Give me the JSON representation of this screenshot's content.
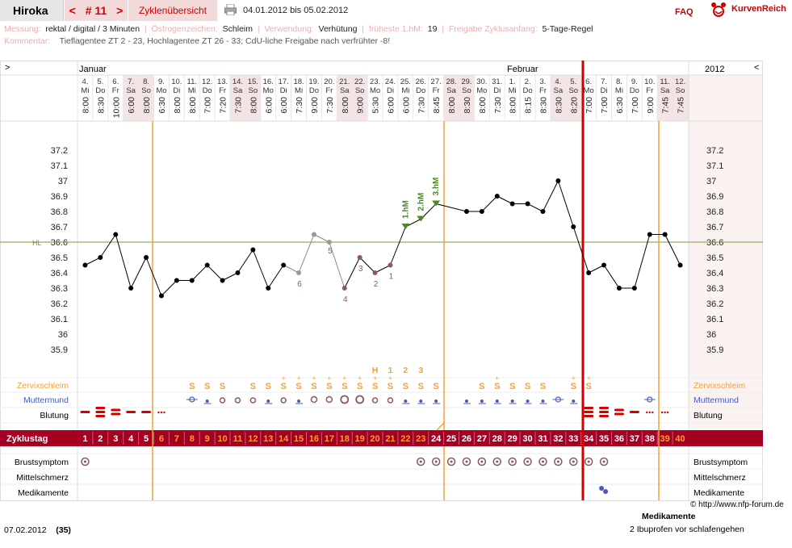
{
  "header": {
    "name": "Hiroka",
    "cycle_prev": "<",
    "cycle_label": "# 11",
    "cycle_next": ">",
    "overview": "Zyklenübersicht",
    "date_range": "04.01.2012 bis 05.02.2012",
    "faq": "FAQ",
    "logo_text": "KurvenReich"
  },
  "info_line1": [
    {
      "k": "Messung:",
      "v": "rektal / digital / 3 Minuten"
    },
    {
      "k": "Östrogenzeichen:",
      "v": "Schleim"
    },
    {
      "k": "Verwendung:",
      "v": "Verhütung"
    },
    {
      "k": "früheste 1.hM:",
      "v": "19"
    },
    {
      "k": "Freigabe Zyklusanfang:",
      "v": "5-Tage-Regel"
    }
  ],
  "info_line2": {
    "k": "Kommentar:",
    "v": "Tieflagentee ZT 2 - 23, Hochlagentee ZT 26 - 33; CdU-liche Freigabe nach verfrühter -8!"
  },
  "chart_header": {
    "left_arrow": ">",
    "right_arrow": "<",
    "month1": "Januar",
    "month2": "Februar",
    "year": "2012"
  },
  "days": [
    {
      "d": "4.",
      "w": "Mi",
      "t": "8:00"
    },
    {
      "d": "5.",
      "w": "Do",
      "t": "8:30"
    },
    {
      "d": "6.",
      "w": "Fr",
      "t": "10:00"
    },
    {
      "d": "7.",
      "w": "Sa",
      "t": "6:00"
    },
    {
      "d": "8.",
      "w": "So",
      "t": "8:00"
    },
    {
      "d": "9.",
      "w": "Mo",
      "t": "6:30"
    },
    {
      "d": "10.",
      "w": "Di",
      "t": "8:00"
    },
    {
      "d": "11.",
      "w": "Mi",
      "t": "8:00"
    },
    {
      "d": "12.",
      "w": "Do",
      "t": "7:00"
    },
    {
      "d": "13.",
      "w": "Fr",
      "t": "7:20"
    },
    {
      "d": "14.",
      "w": "Sa",
      "t": "7:30"
    },
    {
      "d": "15.",
      "w": "So",
      "t": "8:00"
    },
    {
      "d": "16.",
      "w": "Mo",
      "t": "6:00"
    },
    {
      "d": "17.",
      "w": "Di",
      "t": "6:00"
    },
    {
      "d": "18.",
      "w": "Mi",
      "t": "7:30"
    },
    {
      "d": "19.",
      "w": "Do",
      "t": "9:00"
    },
    {
      "d": "20.",
      "w": "Fr",
      "t": "7:30"
    },
    {
      "d": "21.",
      "w": "Sa",
      "t": "8:00"
    },
    {
      "d": "22.",
      "w": "So",
      "t": "9:00"
    },
    {
      "d": "23.",
      "w": "Mo",
      "t": "5:30"
    },
    {
      "d": "24.",
      "w": "Di",
      "t": "6:00"
    },
    {
      "d": "25.",
      "w": "Mi",
      "t": "6:00"
    },
    {
      "d": "26.",
      "w": "Do",
      "t": "7:30"
    },
    {
      "d": "27.",
      "w": "Fr",
      "t": "8:45"
    },
    {
      "d": "28.",
      "w": "Sa",
      "t": "8:00"
    },
    {
      "d": "29.",
      "w": "So",
      "t": "8:30"
    },
    {
      "d": "30.",
      "w": "Mo",
      "t": "8:00"
    },
    {
      "d": "31.",
      "w": "Di",
      "t": "7:30"
    },
    {
      "d": "1.",
      "w": "Mi",
      "t": "8:00"
    },
    {
      "d": "2.",
      "w": "Do",
      "t": "8:15"
    },
    {
      "d": "3.",
      "w": "Fr",
      "t": "8:30"
    },
    {
      "d": "4.",
      "w": "Sa",
      "t": "8:30"
    },
    {
      "d": "5.",
      "w": "So",
      "t": "8:20"
    },
    {
      "d": "6.",
      "w": "Mo",
      "t": "7:00"
    },
    {
      "d": "7.",
      "w": "Di",
      "t": "7:00"
    },
    {
      "d": "8.",
      "w": "Mi",
      "t": "6:30"
    },
    {
      "d": "9.",
      "w": "Do",
      "t": "7:00"
    },
    {
      "d": "10.",
      "w": "Fr",
      "t": "9:00"
    },
    {
      "d": "11.",
      "w": "Sa",
      "t": "7:45"
    },
    {
      "d": "12.",
      "w": "So",
      "t": "7:45"
    }
  ],
  "chart_data": {
    "type": "line",
    "title": "",
    "ylabel": "",
    "ylim": [
      35.8,
      37.3
    ],
    "yticks": [
      "37.2",
      "37.1",
      "37",
      "36.9",
      "36.8",
      "36.7",
      "36.6",
      "36.5",
      "36.4",
      "36.3",
      "36.2",
      "36.1",
      "36",
      "35.9"
    ],
    "hl_label": "HL",
    "hl_value": 36.6,
    "temperatures": [
      36.45,
      36.5,
      36.65,
      36.3,
      36.5,
      36.25,
      36.35,
      36.35,
      36.45,
      36.35,
      36.4,
      36.55,
      36.3,
      36.45,
      36.4,
      36.65,
      36.6,
      36.3,
      36.5,
      36.4,
      36.45,
      36.7,
      36.75,
      36.85,
      null,
      36.8,
      36.8,
      36.9,
      36.85,
      36.85,
      36.8,
      37.0,
      36.7,
      36.4,
      36.45,
      36.3,
      36.3,
      36.65,
      36.65,
      36.45
    ],
    "excluded_points": [
      14,
      15,
      16
    ],
    "lowpoint_labels": [
      {
        "i": 14,
        "n": "6"
      },
      {
        "i": 16,
        "n": "5"
      },
      {
        "i": 17,
        "n": "4"
      },
      {
        "i": 18,
        "n": "3"
      },
      {
        "i": 19,
        "n": "2"
      },
      {
        "i": 20,
        "n": "1"
      }
    ],
    "highpoint_labels": [
      {
        "i": 21,
        "n": "1.hM"
      },
      {
        "i": 22,
        "n": "2.hM"
      },
      {
        "i": 23,
        "n": "3.hM"
      }
    ]
  },
  "rows": {
    "zervix": "Zervixschleim",
    "muttermund": "Muttermund",
    "blutung": "Blutung",
    "zyklustag": "Zyklustag",
    "brust": "Brustsymptom",
    "mittel": "Mittelschmerz",
    "medi": "Medikamente"
  },
  "zervix_marks": [
    "",
    "",
    "",
    "",
    "",
    "",
    "",
    "S",
    "S",
    "S",
    "",
    "S",
    "S",
    "S+",
    "S+",
    "S+",
    "S+",
    "S+",
    "S+",
    "S+",
    "S+",
    "S",
    "S",
    "S",
    "",
    "",
    "S",
    "S+",
    "S",
    "S",
    "S",
    "",
    "S+",
    "S+",
    "",
    "",
    "",
    "",
    "",
    ""
  ],
  "peak_labels": [
    {
      "i": 19,
      "t": "H"
    },
    {
      "i": 20,
      "t": "1"
    },
    {
      "i": 21,
      "t": "2"
    },
    {
      "i": 22,
      "t": "3"
    }
  ],
  "cycle_days": [
    "1",
    "2",
    "3",
    "4",
    "5",
    "6",
    "7",
    "8",
    "9",
    "10",
    "11",
    "12",
    "13",
    "14",
    "15",
    "16",
    "17",
    "18",
    "19",
    "20",
    "21",
    "22",
    "23",
    "24",
    "25",
    "26",
    "27",
    "28",
    "29",
    "30",
    "31",
    "32",
    "33",
    "34",
    "35",
    "36",
    "37",
    "38",
    "39",
    "40"
  ],
  "copyright": "© http://www.nfp-forum.de",
  "footer": {
    "date": "07.02.2012",
    "count": "(35)",
    "medi_title": "Medikamente",
    "medi_text": "2 Ibuprofen vor schlafengehen"
  },
  "colors": {
    "accent": "#a50021",
    "orange": "#f7a035",
    "red": "#d40000",
    "hl": "#7a9a3a",
    "highpoint": "#4a8a20"
  }
}
